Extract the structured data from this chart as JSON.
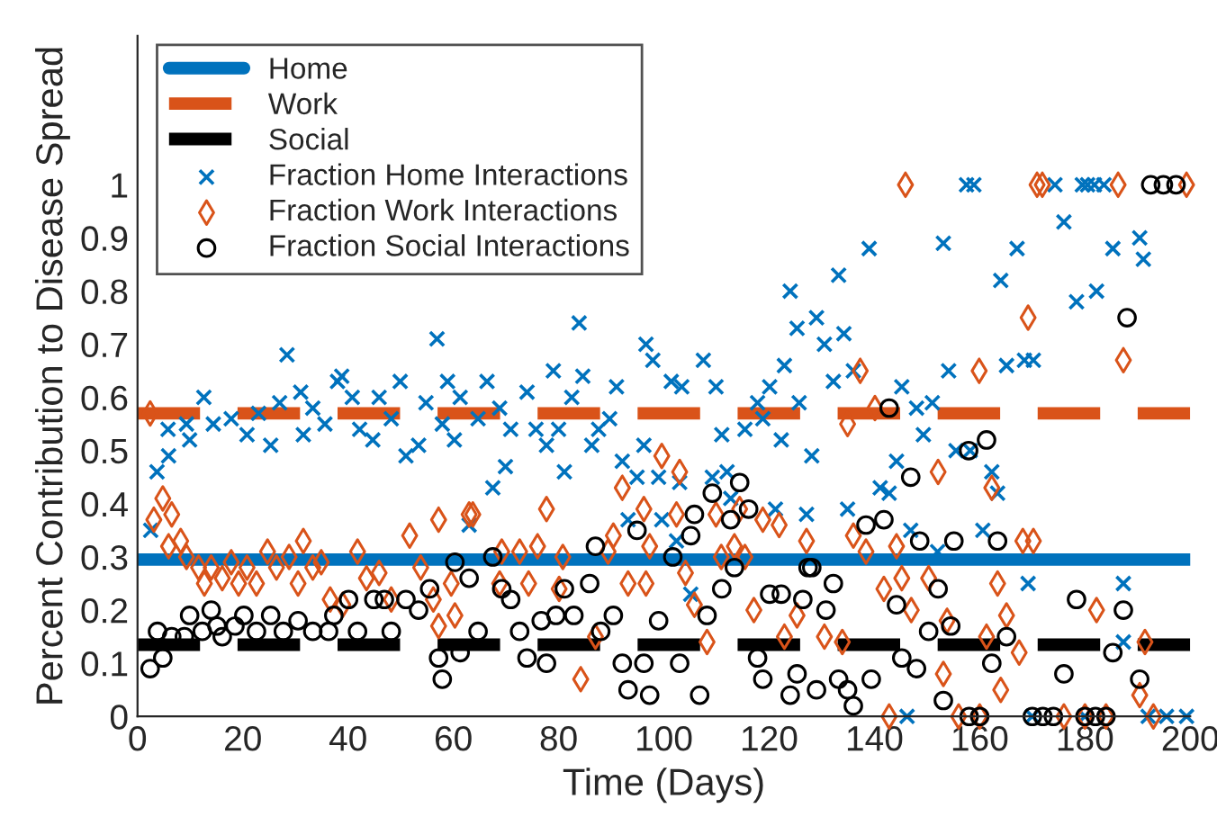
{
  "chart_data": {
    "type": "scatter",
    "xlabel": "Time (Days)",
    "ylabel": "Percent Contribution to Disease Spread",
    "xlim": [
      0,
      200
    ],
    "xticks": [
      0,
      20,
      40,
      60,
      80,
      100,
      120,
      140,
      160,
      180,
      200
    ],
    "ylim": [
      0,
      1.28
    ],
    "yticks": [
      0,
      0.1,
      0.2,
      0.3,
      0.4,
      0.5,
      0.6,
      0.7,
      0.8,
      0.9,
      1
    ],
    "grid": false,
    "legend": "top left",
    "series": [
      {
        "name": "Home",
        "type": "line",
        "color": "#0072bd",
        "line_style": "solid",
        "marker": "none",
        "x": [
          0,
          200
        ],
        "values": [
          0.295,
          0.295
        ]
      },
      {
        "name": "Work",
        "type": "line",
        "color": "#d95319",
        "line_style": "dashed",
        "marker": "none",
        "x": [
          0,
          200
        ],
        "values": [
          0.57,
          0.57
        ]
      },
      {
        "name": "Social",
        "type": "line",
        "color": "#000000",
        "line_style": "dashed",
        "marker": "none",
        "x": [
          0,
          200
        ],
        "values": [
          0.135,
          0.135
        ]
      },
      {
        "name": "Fraction Home Interactions",
        "type": "scatter",
        "color": "#0072bd",
        "marker": "cross",
        "x": [
          2.5,
          3.7,
          5.8,
          5.9,
          9.3,
          9.9,
          12.6,
          14.4,
          17.8,
          20.8,
          23,
          25.3,
          27,
          28.4,
          31,
          31.5,
          33.3,
          35.6,
          38,
          38.8,
          40.8,
          42.2,
          44.7,
          45.9,
          48.2,
          49.9,
          51,
          53.4,
          54.8,
          56.9,
          57.9,
          58.9,
          60.2,
          61.3,
          63,
          64.7,
          66.4,
          67.5,
          68.8,
          69.9,
          70.9,
          74,
          75.7,
          77.7,
          79,
          80,
          81.1,
          82.5,
          83.9,
          84.6,
          86.3,
          87.6,
          89.7,
          91,
          92.1,
          93.2,
          94.9,
          96.2,
          96.6,
          97.9,
          99,
          99.6,
          101.4,
          102.4,
          103,
          103.4,
          105.1,
          107.5,
          109.2,
          109.9,
          111,
          112,
          112.7,
          115.4,
          117.8,
          118.8,
          120.1,
          121.2,
          122.3,
          122.9,
          124,
          125.3,
          125.7,
          127.1,
          128.1,
          129,
          130.5,
          132.2,
          133.2,
          134.2,
          134.9,
          136,
          139,
          141.1,
          142.8,
          144.2,
          145.2,
          146.2,
          146.9,
          148,
          149.3,
          151,
          152,
          153.1,
          154.1,
          155.5,
          157.5,
          158.2,
          158.9,
          160.6,
          162.3,
          163.4,
          164,
          165.1,
          167.1,
          168.5,
          169.2,
          170,
          170.2,
          174.3,
          176,
          178.4,
          179.5,
          180,
          180.5,
          181.8,
          182.2,
          183.6,
          185.3,
          187.3,
          187.3,
          190.4,
          191.1,
          192,
          195.5,
          199.3
        ],
        "values": [
          0.35,
          0.46,
          0.54,
          0.49,
          0.55,
          0.52,
          0.6,
          0.55,
          0.56,
          0.53,
          0.57,
          0.51,
          0.59,
          0.68,
          0.61,
          0.53,
          0.58,
          0.55,
          0.63,
          0.64,
          0.6,
          0.54,
          0.52,
          0.6,
          0.56,
          0.63,
          0.49,
          0.51,
          0.59,
          0.71,
          0.55,
          0.63,
          0.52,
          0.6,
          0.36,
          0.56,
          0.63,
          0.43,
          0.58,
          0.47,
          0.54,
          0.61,
          0.54,
          0.51,
          0.65,
          0.54,
          0.46,
          0.6,
          0.74,
          0.64,
          0.51,
          0.54,
          0.56,
          0.62,
          0.48,
          0.37,
          0.45,
          0.51,
          0.7,
          0.67,
          0.45,
          0.37,
          0.63,
          0.33,
          0.44,
          0.62,
          0.23,
          0.67,
          0.45,
          0.62,
          0.53,
          0.46,
          0.41,
          0.54,
          0.59,
          0.56,
          0.62,
          0.39,
          0.52,
          0.66,
          0.8,
          0.73,
          0.59,
          0.38,
          0.49,
          0.75,
          0.7,
          0.63,
          0.83,
          0.72,
          0.39,
          0.65,
          0.88,
          0.43,
          0.42,
          0.48,
          0.62,
          0,
          0.35,
          0.58,
          0.53,
          0.59,
          0.31,
          0.89,
          0.65,
          0.5,
          1.0,
          0.5,
          1.0,
          0.35,
          0.46,
          0.42,
          0.82,
          0.66,
          0.88,
          0.67,
          0.25,
          0,
          0.67,
          1.0,
          0.93,
          0.78,
          1.0,
          0,
          1.0,
          1.0,
          0.8,
          1.0,
          0.88,
          0.25,
          0.14,
          0.9,
          0.86,
          0,
          0,
          0
        ]
      },
      {
        "name": "Fraction Work Interactions",
        "type": "scatter",
        "color": "#d95319",
        "marker": "diamond",
        "x": [
          2.4,
          3.1,
          4.8,
          6.5,
          5.9,
          8.2,
          9.3,
          11.6,
          12.7,
          14,
          16.1,
          17.8,
          19.2,
          20.8,
          22.6,
          24.7,
          26.4,
          28.8,
          30.5,
          31.5,
          33.3,
          34.9,
          36.6,
          39,
          41.8,
          43.5,
          45.9,
          48.2,
          51.7,
          53.8,
          56.2,
          57.2,
          59.6,
          60.3,
          57.2,
          63,
          63.7,
          69.2,
          68.8,
          72.6,
          76,
          77.7,
          74.3,
          80.8,
          80.1,
          84.2,
          87,
          89.4,
          90.4,
          92.1,
          93.2,
          96.2,
          97.3,
          96.6,
          99.6,
          102.4,
          103,
          104.1,
          105.8,
          108.2,
          109.9,
          110.9,
          114.4,
          113.4,
          115.4,
          117.1,
          118.8,
          121.9,
          122.9,
          125.3,
          127.1,
          130.5,
          133.9,
          134.9,
          136,
          137.3,
          138.4,
          140.1,
          141.8,
          142.8,
          144.2,
          145.2,
          145.9,
          147,
          150.3,
          152.1,
          153.1,
          153.8,
          156,
          159.9,
          160,
          161.3,
          162.3,
          163.4,
          164,
          165.1,
          167.5,
          168.2,
          169.2,
          170.2,
          170.9,
          171.9,
          176,
          180,
          182.2,
          184,
          186.3,
          187.3,
          190.4,
          191.4,
          193,
          199.3
        ],
        "values": [
          0.57,
          0.37,
          0.41,
          0.38,
          0.32,
          0.33,
          0.3,
          0.28,
          0.25,
          0.28,
          0.26,
          0.29,
          0.25,
          0.28,
          0.25,
          0.31,
          0.28,
          0.3,
          0.25,
          0.33,
          0.28,
          0.29,
          0.22,
          0.21,
          0.31,
          0.26,
          0.27,
          0.22,
          0.34,
          0.28,
          0.22,
          0.37,
          0.25,
          0.19,
          0.17,
          0.38,
          0.38,
          0.31,
          0.25,
          0.31,
          0.32,
          0.39,
          0.25,
          0.3,
          0.24,
          0.07,
          0.15,
          0.31,
          0.34,
          0.43,
          0.25,
          0.39,
          0.32,
          0.25,
          0.49,
          0.38,
          0.46,
          0.27,
          0.21,
          0.14,
          0.38,
          0.3,
          0.39,
          0.32,
          0.3,
          0.2,
          0.37,
          0.36,
          0.15,
          0.19,
          0.33,
          0.15,
          0.14,
          0.55,
          0.34,
          0.65,
          0.31,
          0.58,
          0.24,
          0,
          0.32,
          0.26,
          1.0,
          0.2,
          0.26,
          0.46,
          0.08,
          0.18,
          0,
          0.65,
          0,
          0.15,
          0.43,
          0.25,
          0.05,
          0.19,
          0.12,
          0.33,
          0.75,
          0.33,
          1.0,
          1.0,
          0,
          0,
          0.2,
          0,
          1.0,
          0.67,
          0.04,
          0.14,
          0,
          1.0
        ]
      },
      {
        "name": "Fraction Social Interactions",
        "type": "scatter",
        "color": "#000000",
        "marker": "circle",
        "x": [
          2.4,
          3.8,
          4.8,
          6.5,
          8.9,
          9.9,
          12.3,
          14,
          15.1,
          16.1,
          18.5,
          20.2,
          22.6,
          25.3,
          27.7,
          30.5,
          33.3,
          36.3,
          37.3,
          40.1,
          41.8,
          44.9,
          46.9,
          48.2,
          51,
          53.4,
          55.5,
          57.9,
          57.2,
          60.3,
          63,
          61.3,
          64.7,
          67.5,
          69.2,
          70.9,
          72.6,
          74,
          76.7,
          77.7,
          79.5,
          81.1,
          82.9,
          85.9,
          87,
          88,
          90.4,
          92.1,
          93.2,
          94.9,
          96.2,
          97.3,
          99,
          101.7,
          103,
          105.8,
          105.1,
          106.8,
          108.2,
          109.2,
          111,
          112.7,
          113.4,
          114.4,
          116.1,
          117.8,
          118.8,
          120.1,
          122.3,
          124,
          125.3,
          126.4,
          127.4,
          128.1,
          132.2,
          130.8,
          129,
          133.2,
          134.9,
          136,
          138.4,
          141.8,
          142.8,
          139.4,
          144.2,
          145.2,
          146.9,
          148,
          148.6,
          150.3,
          152.1,
          153.1,
          154.5,
          155.1,
          157.9,
          158,
          160,
          161.3,
          162.3,
          163.4,
          165.1,
          170,
          172,
          174,
          176,
          178.4,
          180,
          182,
          184,
          185.3,
          187.3,
          188,
          190.4,
          192.5,
          194.9,
          197.3
        ],
        "values": [
          0.09,
          0.16,
          0.11,
          0.15,
          0.15,
          0.19,
          0.16,
          0.2,
          0.17,
          0.15,
          0.17,
          0.19,
          0.16,
          0.19,
          0.16,
          0.18,
          0.16,
          0.16,
          0.19,
          0.22,
          0.16,
          0.22,
          0.22,
          0.16,
          0.22,
          0.2,
          0.24,
          0.07,
          0.11,
          0.29,
          0.26,
          0.12,
          0.16,
          0.3,
          0.24,
          0.22,
          0.16,
          0.11,
          0.18,
          0.1,
          0.19,
          0.24,
          0.19,
          0.25,
          0.32,
          0.16,
          0.19,
          0.1,
          0.05,
          0.35,
          0.1,
          0.04,
          0.18,
          0.3,
          0.1,
          0.38,
          0.34,
          0.04,
          0.19,
          0.42,
          0.24,
          0.37,
          0.28,
          0.44,
          0.39,
          0.11,
          0.07,
          0.23,
          0.23,
          0.04,
          0.08,
          0.22,
          0.28,
          0.28,
          0.25,
          0.2,
          0.05,
          0.07,
          0.05,
          0.02,
          0.36,
          0.37,
          0.58,
          0.07,
          0.21,
          0.11,
          0.45,
          0.09,
          0.33,
          0.16,
          0.24,
          0.03,
          0.17,
          0.33,
          0.5,
          0,
          0,
          0.52,
          0.1,
          0.33,
          0.15,
          0,
          0,
          0,
          0.08,
          0.22,
          0,
          0,
          0,
          0.12,
          0.2,
          0.75,
          0.07,
          1.0,
          1.0,
          1.0
        ]
      }
    ]
  }
}
